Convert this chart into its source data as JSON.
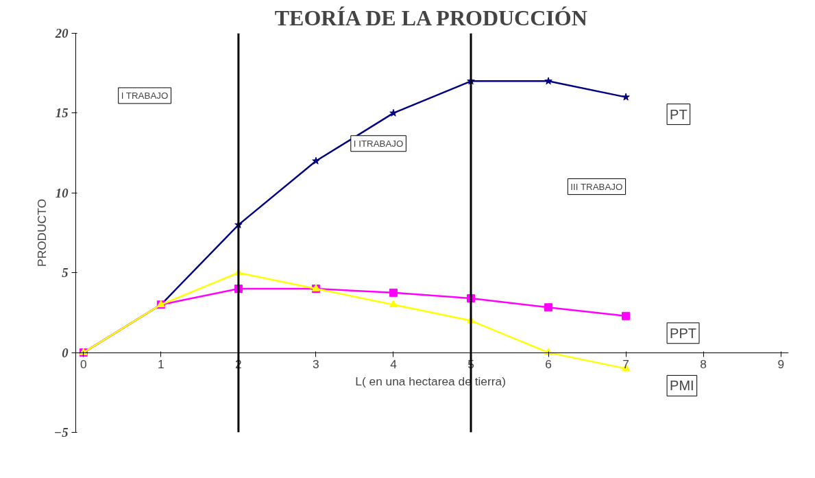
{
  "chart_data": {
    "type": "line",
    "title": "TEORÍA DE LA PRODUCCIÓN",
    "xlabel": "L( en una  hectarea de tierra)",
    "ylabel": "PRODUCTO",
    "xlim": [
      -0.1,
      9.1
    ],
    "xticks": [
      0,
      1,
      2,
      3,
      4,
      5,
      6,
      7,
      8,
      9
    ],
    "ylim": [
      -5,
      20
    ],
    "yticks": [
      -5,
      0,
      5,
      10,
      15,
      20
    ],
    "grid": false,
    "series": [
      {
        "name": "PT",
        "color": "#000080",
        "marker": "star",
        "x": [
          0,
          1,
          2,
          3,
          4,
          5,
          6,
          7
        ],
        "values": [
          0,
          3,
          8,
          12,
          15,
          17,
          17,
          16
        ]
      },
      {
        "name": "PPT",
        "color": "#ff00ff",
        "marker": "square",
        "x": [
          0,
          1,
          2,
          3,
          4,
          5,
          6,
          7
        ],
        "values": [
          0,
          3,
          4,
          4,
          3.75,
          3.4,
          2.83,
          2.29
        ]
      },
      {
        "name": "PMI",
        "color": "#ffff00",
        "marker": "triangle",
        "x": [
          0,
          1,
          2,
          3,
          4,
          5,
          6,
          7
        ],
        "values": [
          0,
          3,
          5,
          4,
          3,
          2,
          0,
          -1
        ]
      }
    ],
    "ref_lines": [
      {
        "axis": "x",
        "value": 2,
        "label": null,
        "color": "#000000"
      },
      {
        "axis": "x",
        "value": 5,
        "label": null,
        "color": "#000000"
      }
    ],
    "annotations": [
      "I TRABAJO",
      "I ITRABAJO",
      "III TRABAJO"
    ]
  }
}
